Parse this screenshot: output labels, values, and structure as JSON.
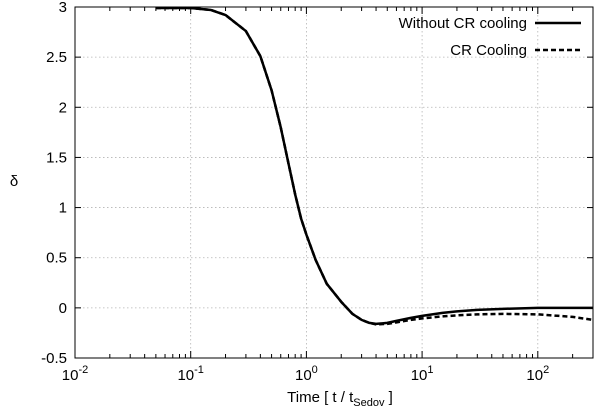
{
  "chart_data": {
    "type": "line",
    "xlabel_main": "Time [ t / t",
    "xlabel_sub": "Sedov",
    "xlabel_end": " ]",
    "ylabel": "δ",
    "x_scale": "log",
    "xlim": [
      0.01,
      300
    ],
    "ylim": [
      -0.5,
      3
    ],
    "x_ticks": [
      {
        "value": 0.01,
        "base": "10",
        "exp": "-2"
      },
      {
        "value": 0.1,
        "base": "10",
        "exp": "-1"
      },
      {
        "value": 1,
        "base": "10",
        "exp": "0"
      },
      {
        "value": 10,
        "base": "10",
        "exp": "1"
      },
      {
        "value": 100,
        "base": "10",
        "exp": "2"
      }
    ],
    "y_ticks": [
      {
        "value": -0.5,
        "label": "-0.5"
      },
      {
        "value": 0,
        "label": "0"
      },
      {
        "value": 0.5,
        "label": "0.5"
      },
      {
        "value": 1,
        "label": "1"
      },
      {
        "value": 1.5,
        "label": "1.5"
      },
      {
        "value": 2,
        "label": "2"
      },
      {
        "value": 2.5,
        "label": "2.5"
      },
      {
        "value": 3,
        "label": "3"
      }
    ],
    "grid": true,
    "legend_position": "top-right",
    "series": [
      {
        "name": "Without CR cooling",
        "style": "solid",
        "color": "#000000",
        "x": [
          0.05,
          0.1,
          0.15,
          0.2,
          0.3,
          0.4,
          0.5,
          0.6,
          0.7,
          0.8,
          0.9,
          1.0,
          1.2,
          1.5,
          2.0,
          2.5,
          3.0,
          3.5,
          4.0,
          5.0,
          6.0,
          8.0,
          10,
          15,
          20,
          30,
          50,
          100,
          200,
          300
        ],
        "y": [
          2.99,
          2.99,
          2.97,
          2.92,
          2.76,
          2.51,
          2.17,
          1.8,
          1.44,
          1.13,
          0.89,
          0.73,
          0.48,
          0.24,
          0.06,
          -0.06,
          -0.12,
          -0.15,
          -0.16,
          -0.15,
          -0.13,
          -0.1,
          -0.08,
          -0.05,
          -0.035,
          -0.02,
          -0.01,
          0.0,
          0.0,
          0.0
        ]
      },
      {
        "name": "CR Cooling",
        "style": "dashed",
        "color": "#000000",
        "x": [
          0.05,
          0.1,
          0.15,
          0.2,
          0.3,
          0.4,
          0.5,
          0.6,
          0.7,
          0.8,
          0.9,
          1.0,
          1.2,
          1.5,
          2.0,
          2.5,
          3.0,
          3.5,
          4.0,
          5.0,
          6.0,
          8.0,
          10,
          15,
          20,
          30,
          50,
          100,
          200,
          300
        ],
        "y": [
          2.99,
          2.99,
          2.97,
          2.92,
          2.76,
          2.51,
          2.17,
          1.8,
          1.44,
          1.13,
          0.89,
          0.73,
          0.48,
          0.24,
          0.06,
          -0.06,
          -0.12,
          -0.15,
          -0.165,
          -0.16,
          -0.145,
          -0.12,
          -0.105,
          -0.085,
          -0.075,
          -0.065,
          -0.06,
          -0.065,
          -0.09,
          -0.12
        ]
      }
    ]
  }
}
